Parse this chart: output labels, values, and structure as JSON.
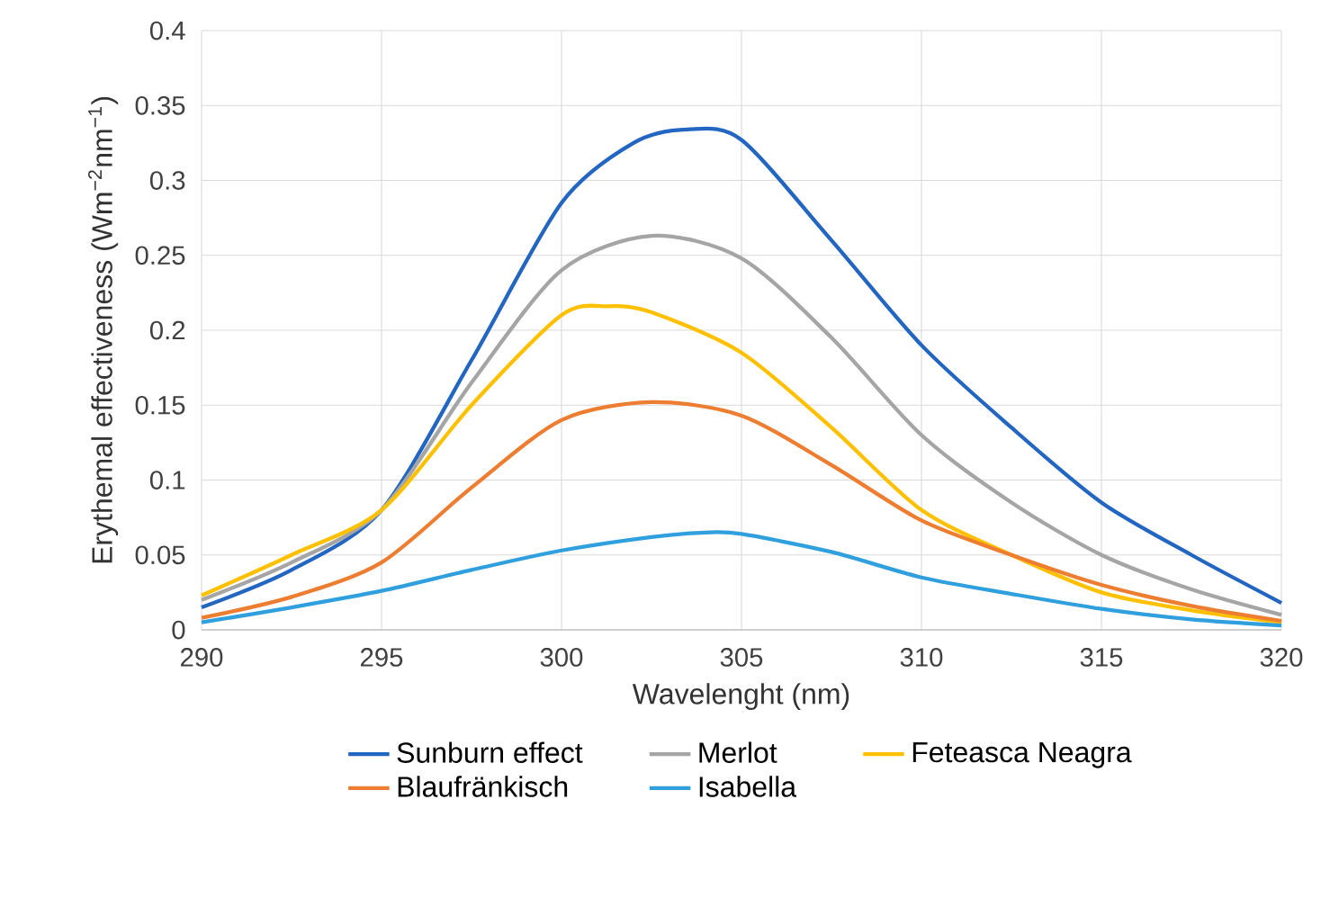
{
  "chart_data": {
    "type": "line",
    "xlabel": "Wavelenght (nm)",
    "ylabel": "Erythemal effectiveness (Wm$^{−2}$nm$^{−1}$)",
    "xlim": [
      290,
      320
    ],
    "xticks": [
      290,
      295,
      300,
      305,
      310,
      315,
      320
    ],
    "ylim": [
      0,
      0.4
    ],
    "yticks": [
      0,
      0.05,
      0.1,
      0.15,
      0.2,
      0.25,
      0.3,
      0.35,
      0.4
    ],
    "grid": true,
    "legend": "bottom",
    "marker": "none",
    "line_style": "solid",
    "series": [
      {
        "name": "Sunburn effect",
        "color": "#2366c2",
        "x": [
          290,
          292.5,
          295,
          297.5,
          300,
          302,
          303.5,
          305,
          307.5,
          310,
          312.5,
          315,
          317.5,
          320
        ],
        "values": [
          0.015,
          0.04,
          0.08,
          0.18,
          0.285,
          0.325,
          0.334,
          0.327,
          0.26,
          0.19,
          0.135,
          0.085,
          0.05,
          0.018
        ]
      },
      {
        "name": "Merlot",
        "color": "#a5a5a5",
        "x": [
          290,
          292.5,
          295,
          297.5,
          300,
          302.5,
          305,
          307.5,
          310,
          312.5,
          315,
          317.5,
          320
        ],
        "values": [
          0.02,
          0.045,
          0.08,
          0.165,
          0.24,
          0.263,
          0.248,
          0.195,
          0.13,
          0.085,
          0.05,
          0.027,
          0.01
        ]
      },
      {
        "name": "Feteasca Neagra",
        "color": "#ffc000",
        "x": [
          290,
          292.5,
          295,
          297.5,
          300,
          301.3,
          302.5,
          305,
          307.5,
          310,
          312.5,
          315,
          317.5,
          320
        ],
        "values": [
          0.023,
          0.05,
          0.08,
          0.15,
          0.21,
          0.216,
          0.212,
          0.185,
          0.135,
          0.08,
          0.05,
          0.025,
          0.013,
          0.005
        ]
      },
      {
        "name": "Blaufränkisch",
        "color": "#ed7d31",
        "x": [
          290,
          292.5,
          295,
          297.5,
          300,
          302.5,
          305,
          307.5,
          310,
          312.5,
          315,
          317.5,
          320
        ],
        "values": [
          0.008,
          0.022,
          0.045,
          0.095,
          0.14,
          0.152,
          0.143,
          0.11,
          0.073,
          0.05,
          0.03,
          0.016,
          0.006
        ]
      },
      {
        "name": "Isabella",
        "color": "#2f9fde",
        "x": [
          290,
          292.5,
          295,
          297.5,
          300,
          302.5,
          304,
          305,
          307.5,
          310,
          312.5,
          315,
          317.5,
          320
        ],
        "values": [
          0.005,
          0.015,
          0.026,
          0.04,
          0.053,
          0.062,
          0.065,
          0.064,
          0.052,
          0.035,
          0.024,
          0.014,
          0.007,
          0.003
        ]
      }
    ]
  }
}
